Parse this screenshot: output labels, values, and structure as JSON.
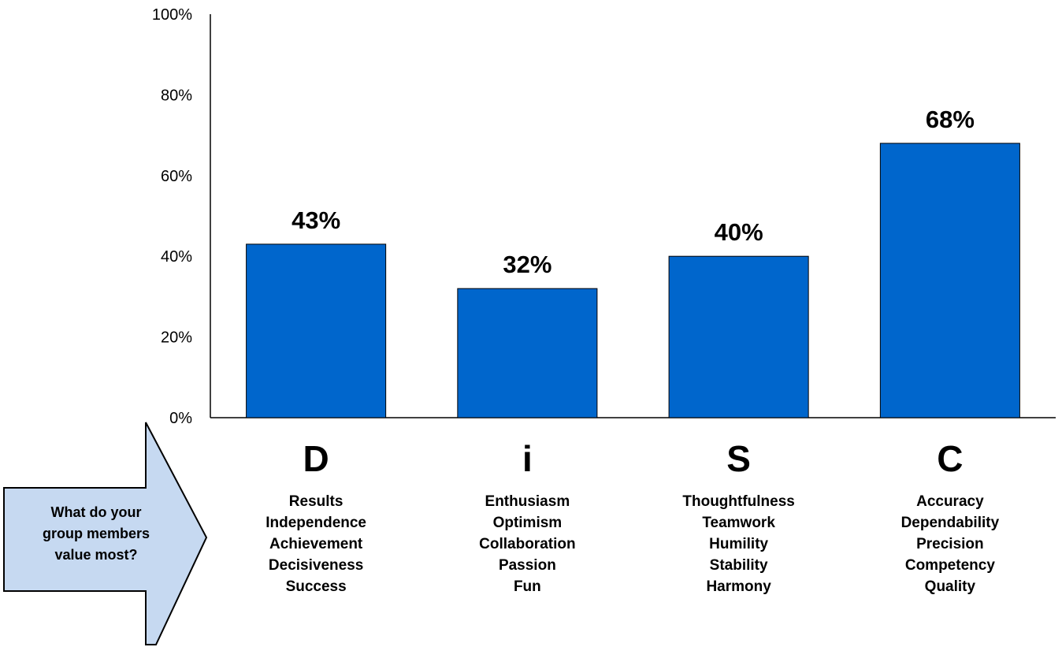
{
  "chart_data": {
    "type": "bar",
    "categories": [
      "D",
      "i",
      "S",
      "C"
    ],
    "values": [
      43,
      32,
      40,
      68
    ],
    "data_labels": [
      "43%",
      "32%",
      "40%",
      "68%"
    ],
    "title": "",
    "xlabel": "",
    "ylabel": "",
    "ylim": [
      0,
      100
    ],
    "yticks": [
      "0%",
      "20%",
      "40%",
      "60%",
      "80%",
      "100%"
    ],
    "grid": false,
    "legend": "none",
    "bar_color": "#0066CC",
    "category_values": [
      [
        "Results",
        "Independence",
        "Achievement",
        "Decisiveness",
        "Success"
      ],
      [
        "Enthusiasm",
        "Optimism",
        "Collaboration",
        "Passion",
        "Fun"
      ],
      [
        "Thoughtfulness",
        "Teamwork",
        "Humility",
        "Stability",
        "Harmony"
      ],
      [
        "Accuracy",
        "Dependability",
        "Precision",
        "Competency",
        "Quality"
      ]
    ]
  },
  "callout": {
    "lines": [
      "What do your",
      "group members",
      "value most?"
    ],
    "fill_color": "#C6D9F1",
    "stroke_color": "#000000"
  }
}
